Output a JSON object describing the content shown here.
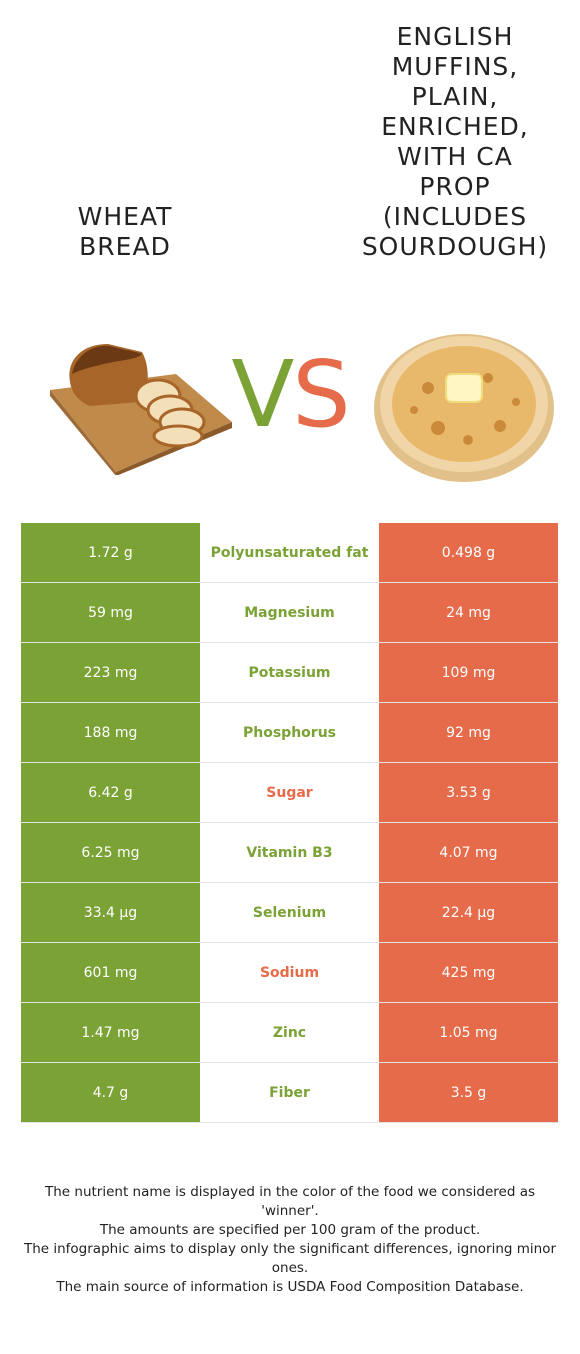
{
  "header": {
    "left_food": "WHEAT BREAD",
    "right_food": "ENGLISH MUFFINS, PLAIN, ENRICHED, WITH CA PROP (INCLUDES SOURDOUGH)",
    "vs_v": "V",
    "vs_s": "S"
  },
  "colors": {
    "left_food": "#7ba235",
    "right_food": "#e56b4a"
  },
  "images": {
    "left": "bread-loaf-on-cutting-board",
    "right": "toasted-english-muffin-with-butter"
  },
  "rows": [
    {
      "left": "1.72 g",
      "nutrient": "Polyunsaturated fat",
      "right": "0.498 g",
      "winner": "left"
    },
    {
      "left": "59 mg",
      "nutrient": "Magnesium",
      "right": "24 mg",
      "winner": "left"
    },
    {
      "left": "223 mg",
      "nutrient": "Potassium",
      "right": "109 mg",
      "winner": "left"
    },
    {
      "left": "188 mg",
      "nutrient": "Phosphorus",
      "right": "92 mg",
      "winner": "left"
    },
    {
      "left": "6.42 g",
      "nutrient": "Sugar",
      "right": "3.53 g",
      "winner": "right"
    },
    {
      "left": "6.25 mg",
      "nutrient": "Vitamin B3",
      "right": "4.07 mg",
      "winner": "left"
    },
    {
      "left": "33.4 µg",
      "nutrient": "Selenium",
      "right": "22.4 µg",
      "winner": "left"
    },
    {
      "left": "601 mg",
      "nutrient": "Sodium",
      "right": "425 mg",
      "winner": "right"
    },
    {
      "left": "1.47 mg",
      "nutrient": "Zinc",
      "right": "1.05 mg",
      "winner": "left"
    },
    {
      "left": "4.7 g",
      "nutrient": "Fiber",
      "right": "3.5 g",
      "winner": "left"
    }
  ],
  "footnotes": [
    "The nutrient name is displayed in the color of the food we considered as 'winner'.",
    "The amounts are specified per 100 gram of the product.",
    "The infographic aims to display only the significant differences, ignoring minor ones.",
    "The main source of information is USDA Food Composition Database."
  ]
}
